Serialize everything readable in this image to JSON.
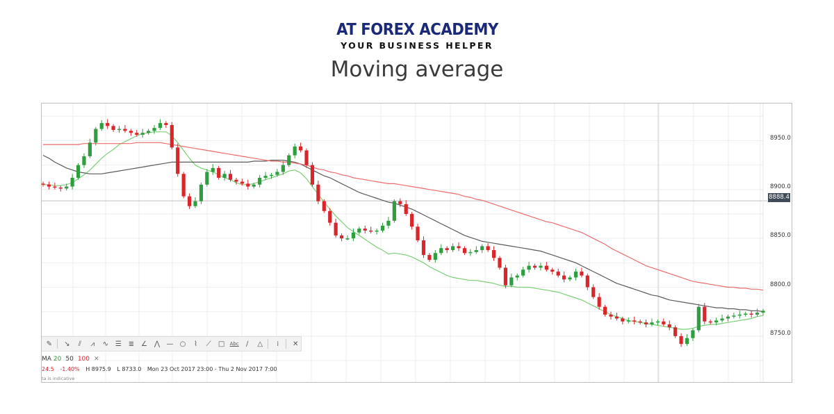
{
  "brand": {
    "name": "AT FOREX ACADEMY",
    "tagline": "YOUR BUSINESS HELPER"
  },
  "title": "Moving average",
  "toolbar": {
    "icons": [
      "pencil-icon",
      "arrow-down-right-icon",
      "parallel-lines-icon",
      "zigzag-icon",
      "wave-icon",
      "fibonacci-icon",
      "gann-icon",
      "fan-icon",
      "pattern-icon",
      "horizontal-line-icon",
      "circle-icon",
      "brush-icon",
      "trend-line-icon",
      "rectangle-icon",
      "text-icon",
      "line-icon",
      "triangle-icon",
      "cursor-icon",
      "close-icon"
    ],
    "text_icon_label": "Abc"
  },
  "legend": {
    "prefix": "MA",
    "ma20": "20",
    "ma50": "50",
    "ma100": "100",
    "close": "✕"
  },
  "info": {
    "close_partial": "24.5",
    "change": "-1.40%",
    "high": "H 8975.9",
    "low": "L 8733.0",
    "range": "Mon 23 Oct 2017 23:00 - Thu 2 Nov 2017 7:00"
  },
  "note": "ta is indicative",
  "price_tag": "8888.4",
  "colors": {
    "up": "#2e9e3e",
    "down": "#d8262b",
    "ma20": "#7ccf76",
    "ma50": "#5a5a5a",
    "ma100": "#ef6b6b",
    "tag_bg": "#3f4b59"
  },
  "chart_data": {
    "type": "line",
    "series_type": "candlestick",
    "y_ticks": [
      "8950.0",
      "8900.0",
      "8850.0",
      "8800.0",
      "8750.0"
    ],
    "y_tick_values": [
      8950,
      8900,
      8850,
      8800,
      8750
    ],
    "ylim": [
      8703,
      8988
    ],
    "current_price": 8888.4,
    "candles_close": [
      8905,
      8903,
      8902,
      8901,
      8903,
      8912,
      8925,
      8934,
      8948,
      8962,
      8968,
      8965,
      8961,
      8962,
      8960,
      8958,
      8956,
      8958,
      8960,
      8963,
      8968,
      8966,
      8943,
      8916,
      8893,
      8883,
      8888,
      8905,
      8918,
      8922,
      8912,
      8916,
      8910,
      8908,
      8906,
      8903,
      8905,
      8912,
      8914,
      8915,
      8918,
      8925,
      8935,
      8944,
      8940,
      8925,
      8905,
      8888,
      8878,
      8866,
      8853,
      8850,
      8850,
      8856,
      8860,
      8858,
      8857,
      8858,
      8863,
      8868,
      8888,
      8885,
      8875,
      8862,
      8848,
      8833,
      8828,
      8835,
      8840,
      8838,
      8842,
      8840,
      8835,
      8836,
      8838,
      8842,
      8838,
      8830,
      8820,
      8802,
      8810,
      8812,
      8818,
      8822,
      8820,
      8822,
      8818,
      8816,
      8812,
      8808,
      8810,
      8816,
      8812,
      8800,
      8790,
      8780,
      8772,
      8770,
      8768,
      8765,
      8766,
      8765,
      8764,
      8762,
      8764,
      8765,
      8762,
      8759,
      8750,
      8742,
      8748,
      8756,
      8780,
      8765,
      8764,
      8766,
      8768,
      8770,
      8771,
      8772,
      8773,
      8772,
      8774,
      8776
    ],
    "ma_series": [
      {
        "name": "20",
        "values": [
          8905,
          8905,
          8904,
          8904,
          8905,
          8907,
          8911,
          8915,
          8920,
          8926,
          8932,
          8937,
          8941,
          8946,
          8949,
          8952,
          8955,
          8957,
          8958,
          8959,
          8959,
          8959,
          8955,
          8948,
          8940,
          8932,
          8925,
          8922,
          8920,
          8918,
          8915,
          8912,
          8910,
          8907,
          8905,
          8905,
          8906,
          8908,
          8910,
          8912,
          8914,
          8916,
          8919,
          8920,
          8917,
          8911,
          8903,
          8895,
          8887,
          8880,
          8873,
          8867,
          8861,
          8857,
          8853,
          8849,
          8845,
          8841,
          8838,
          8834,
          8835,
          8834,
          8833,
          8831,
          8828,
          8825,
          8821,
          8818,
          8815,
          8812,
          8810,
          8809,
          8808,
          8807,
          8807,
          8806,
          8805,
          8804,
          8802,
          8801,
          8801,
          8800,
          8800,
          8800,
          8799,
          8798,
          8797,
          8796,
          8795,
          8793,
          8791,
          8789,
          8787,
          8784,
          8781,
          8778,
          8775,
          8772,
          8770,
          8768,
          8766,
          8765,
          8764,
          8763,
          8762,
          8761,
          8760,
          8759,
          8758,
          8757,
          8757,
          8758,
          8760,
          8761,
          8762,
          8762,
          8763,
          8764,
          8765,
          8766,
          8767,
          8768,
          8770,
          8771
        ]
      },
      {
        "name": "50",
        "values": [
          8935,
          8932,
          8928,
          8925,
          8922,
          8920,
          8918,
          8917,
          8916,
          8916,
          8916,
          8917,
          8918,
          8919,
          8920,
          8921,
          8922,
          8923,
          8924,
          8925,
          8926,
          8927,
          8928,
          8928,
          8928,
          8928,
          8928,
          8928,
          8928,
          8928,
          8928,
          8928,
          8928,
          8928,
          8928,
          8928,
          8929,
          8929,
          8929,
          8930,
          8930,
          8930,
          8929,
          8928,
          8926,
          8923,
          8920,
          8917,
          8914,
          8912,
          8909,
          8906,
          8903,
          8900,
          8897,
          8895,
          8893,
          8891,
          8889,
          8887,
          8886,
          8884,
          8882,
          8880,
          8877,
          8874,
          8871,
          8868,
          8865,
          8862,
          8859,
          8856,
          8853,
          8851,
          8849,
          8847,
          8846,
          8845,
          8844,
          8843,
          8842,
          8841,
          8840,
          8839,
          8838,
          8837,
          8835,
          8833,
          8831,
          8829,
          8827,
          8825,
          8822,
          8819,
          8816,
          8813,
          8810,
          8807,
          8804,
          8802,
          8800,
          8798,
          8796,
          8794,
          8792,
          8791,
          8789,
          8787,
          8786,
          8785,
          8784,
          8783,
          8782,
          8781,
          8780,
          8779,
          8779,
          8778,
          8778,
          8777,
          8777,
          8776,
          8776,
          8775
        ]
      },
      {
        "name": "100",
        "values": [
          8946,
          8946,
          8946,
          8946,
          8946,
          8946,
          8946,
          8947,
          8947,
          8947,
          8947,
          8947,
          8947,
          8947,
          8947,
          8947,
          8948,
          8948,
          8948,
          8948,
          8948,
          8947,
          8946,
          8945,
          8944,
          8943,
          8942,
          8941,
          8940,
          8939,
          8938,
          8937,
          8936,
          8935,
          8934,
          8933,
          8932,
          8931,
          8930,
          8929,
          8929,
          8928,
          8928,
          8927,
          8926,
          8925,
          8923,
          8921,
          8920,
          8918,
          8917,
          8915,
          8914,
          8912,
          8911,
          8910,
          8909,
          8908,
          8907,
          8906,
          8906,
          8905,
          8904,
          8903,
          8902,
          8901,
          8900,
          8899,
          8898,
          8897,
          8896,
          8895,
          8893,
          8892,
          8890,
          8889,
          8887,
          8885,
          8883,
          8881,
          8879,
          8877,
          8875,
          8873,
          8871,
          8869,
          8867,
          8866,
          8864,
          8862,
          8860,
          8858,
          8856,
          8853,
          8850,
          8847,
          8844,
          8840,
          8837,
          8834,
          8831,
          8828,
          8825,
          8822,
          8820,
          8818,
          8816,
          8814,
          8812,
          8810,
          8808,
          8806,
          8805,
          8804,
          8803,
          8802,
          8801,
          8800,
          8800,
          8799,
          8799,
          8798,
          8798,
          8797
        ]
      }
    ],
    "grid": true
  }
}
